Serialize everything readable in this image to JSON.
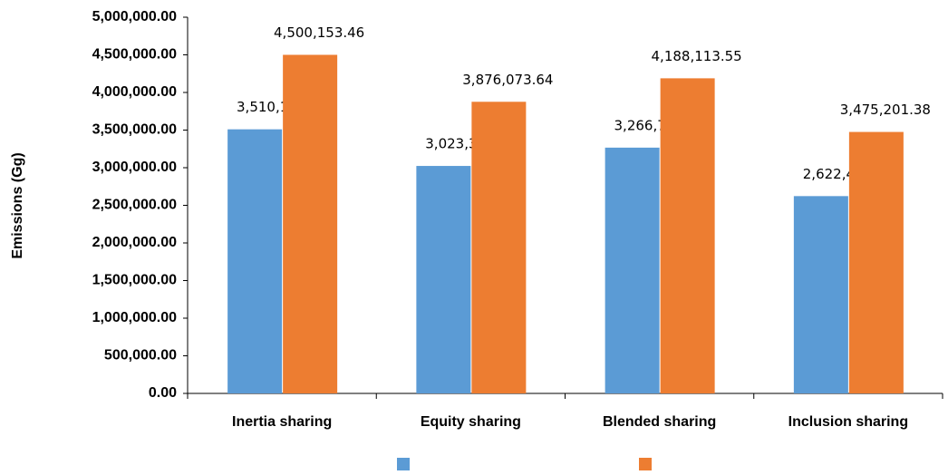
{
  "chart_data": {
    "type": "bar",
    "y_label": "Emissions (Gg)",
    "categories": [
      "Inertia sharing",
      "Equity sharing",
      "Blended sharing",
      "Inclusion sharing"
    ],
    "series": [
      {
        "color": "#5b9bd5",
        "values": [
          3510119.7,
          3023337.44,
          3266728.57,
          2622465.18
        ],
        "value_labels": [
          "3,510,119.70",
          "3,023,337.44",
          "3,266,728.57",
          "2,622,465.18"
        ]
      },
      {
        "color": "#ed7d31",
        "values": [
          4500153.46,
          3876073.64,
          4188113.55,
          3475201.38
        ],
        "value_labels": [
          "4,500,153.46",
          "3,876,073.64",
          "4,188,113.55",
          "3,475,201.38"
        ]
      }
    ],
    "ylim": [
      0,
      5000000
    ],
    "yticks": [
      {
        "value": 0,
        "label": "0.00"
      },
      {
        "value": 500000,
        "label": "500,000.00"
      },
      {
        "value": 1000000,
        "label": "1,000,000.00"
      },
      {
        "value": 1500000,
        "label": "1,500,000.00"
      },
      {
        "value": 2000000,
        "label": "2,000,000.00"
      },
      {
        "value": 2500000,
        "label": "2,500,000.00"
      },
      {
        "value": 3000000,
        "label": "3,000,000.00"
      },
      {
        "value": 3500000,
        "label": "3,500,000.00"
      },
      {
        "value": 4000000,
        "label": "4,000,000.00"
      },
      {
        "value": 4500000,
        "label": "4,500,000.00"
      },
      {
        "value": 5000000,
        "label": "5,000,000.00"
      }
    ],
    "grid": false
  }
}
